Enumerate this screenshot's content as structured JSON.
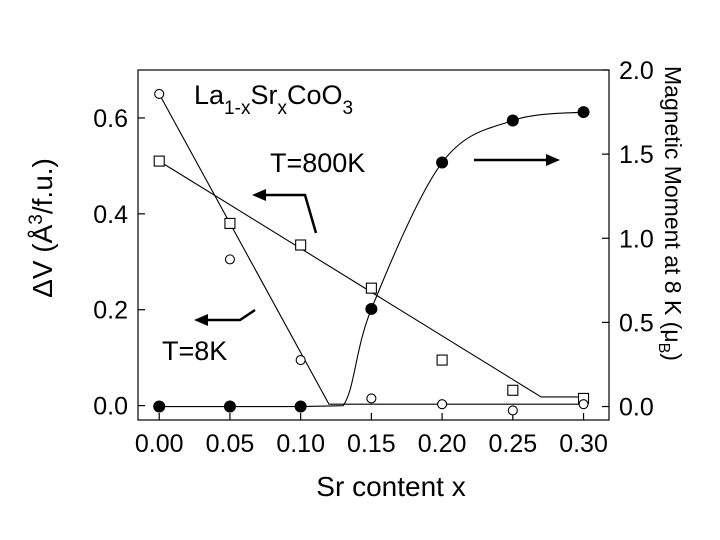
{
  "chart_data": {
    "type": "scatter",
    "title": "",
    "xlabel": "Sr content x",
    "ylabel_left": {
      "prefix": "ΔV (",
      "mid": "Å",
      "sup": "3",
      "suffix": "/f.u.)"
    },
    "ylabel_right": {
      "main": "Magnetic Moment at 8 K (",
      "mu": "μ",
      "sub": "B",
      "close": ")"
    },
    "xlim": [
      -0.015,
      0.318
    ],
    "ylim_left": [
      -0.03,
      0.7
    ],
    "ylim_right": [
      -0.08,
      2.0
    ],
    "x_ticks": [
      "0.00",
      "0.05",
      "0.10",
      "0.15",
      "0.20",
      "0.25",
      "0.30"
    ],
    "y_ticks_left": [
      "0.0",
      "0.2",
      "0.4",
      "0.6"
    ],
    "y_ticks_right": [
      "0.0",
      "0.5",
      "1.0",
      "1.5",
      "2.0"
    ],
    "compound": {
      "t1": "La",
      "s1": "1-x",
      "t2": "Sr",
      "s2": "x",
      "t3": "CoO",
      "s3": "3"
    },
    "annotations": {
      "t800": "T=800K",
      "t8": "T=8K"
    },
    "series": [
      {
        "marker": "open-square",
        "axis": "left",
        "x": [
          0.0,
          0.05,
          0.1,
          0.15,
          0.2,
          0.25,
          0.3
        ],
        "y": [
          0.51,
          0.38,
          0.335,
          0.245,
          0.095,
          0.032,
          0.015
        ],
        "fit": [
          [
            0.0,
            0.51
          ],
          [
            0.27,
            0.018
          ],
          [
            0.3,
            0.018
          ]
        ]
      },
      {
        "marker": "open-circle",
        "axis": "left",
        "x": [
          0.0,
          0.05,
          0.1,
          0.15,
          0.2,
          0.25,
          0.3
        ],
        "y": [
          0.65,
          0.305,
          0.095,
          0.015,
          0.003,
          -0.01,
          0.003
        ],
        "fit": [
          [
            0.0,
            0.65
          ],
          [
            0.12,
            0.003
          ],
          [
            0.3,
            0.003
          ]
        ]
      },
      {
        "marker": "filled-circle",
        "axis": "right",
        "x": [
          0.0,
          0.05,
          0.1,
          0.15,
          0.2,
          0.25,
          0.3
        ],
        "y": [
          0.0,
          0.0,
          0.0,
          0.58,
          1.45,
          1.7,
          1.75
        ],
        "fit": [
          [
            0.0,
            0.0
          ],
          [
            0.1,
            0.0
          ],
          [
            0.13,
            0.005
          ],
          [
            0.15,
            0.58
          ],
          [
            0.2,
            1.45
          ],
          [
            0.25,
            1.7
          ],
          [
            0.3,
            1.75
          ]
        ]
      }
    ]
  }
}
